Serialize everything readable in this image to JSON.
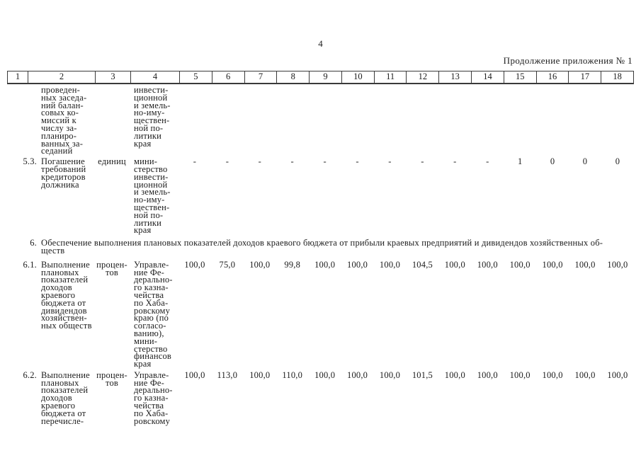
{
  "colors": {
    "background": "#ffffff",
    "ink": "#1c1c1c",
    "table_border": "#3a3a3a"
  },
  "page": {
    "number": "4",
    "caption": "Продолжение приложения № 1"
  },
  "table": {
    "header": [
      "1",
      "2",
      "3",
      "4",
      "5",
      "6",
      "7",
      "8",
      "9",
      "10",
      "11",
      "12",
      "13",
      "14",
      "15",
      "16",
      "17",
      "18"
    ],
    "rows": [
      {
        "num": "",
        "name": "проведен-\nных заседа-\nний балан-\nсовых ко-\nмиссий к\nчислу за-\nпланиро-\nванных за-\nседаний",
        "unit": "",
        "executor": "инвести-\nционной\nи земель-\nно-иму-\nществен-\nной по-\nлитики\nкрая",
        "values": [
          "",
          "",
          "",
          "",
          "",
          "",
          "",
          "",
          "",
          "",
          "",
          "",
          "",
          ""
        ]
      },
      {
        "num": "5.3.",
        "name": "Погашение\nтребований\nкредиторов\nдолжника",
        "unit": "единиц",
        "executor": "мини-\nстерство\nинвести-\nционной\nи земель-\nно-иму-\nществен-\nной по-\nлитики\nкрая",
        "values": [
          "-",
          "-",
          "-",
          "-",
          "-",
          "-",
          "-",
          "-",
          "-",
          "-",
          "1",
          "0",
          "0",
          "0"
        ]
      },
      {
        "num": "6.",
        "title": "Обеспечение выполнения плановых показателей доходов краевого бюджета от прибыли краевых предприятий и дивидендов хозяйственных об-\nществ"
      },
      {
        "num": "6.1.",
        "name": "Выполнение\nплановых\nпоказателей\nдоходов\nкраевого\nбюджета от\nдивидендов\nхозяйствен-\nных обществ",
        "unit": "процен-\nтов",
        "executor": "Управле-\nние Фе-\nдерально-\nго казна-\nчейства\nпо Хаба-\nровскому\nкраю (по\nсогласо-\nванию),\nмини-\nстерство\nфинансов\nкрая",
        "values": [
          "100,0",
          "75,0",
          "100,0",
          "99,8",
          "100,0",
          "100,0",
          "100,0",
          "104,5",
          "100,0",
          "100,0",
          "100,0",
          "100,0",
          "100,0",
          "100,0"
        ]
      },
      {
        "num": "6.2.",
        "name": "Выполнение\nплановых\nпоказателей\nдоходов\nкраевого\nбюджета от\nперечисле-",
        "unit": "процен-\nтов",
        "executor": "Управле-\nние Фе-\nдерально-\nго казна-\nчейства\nпо Хаба-\nровскому",
        "values": [
          "100,0",
          "113,0",
          "100,0",
          "110,0",
          "100,0",
          "100,0",
          "100,0",
          "101,5",
          "100,0",
          "100,0",
          "100,0",
          "100,0",
          "100,0",
          "100,0"
        ]
      }
    ]
  }
}
